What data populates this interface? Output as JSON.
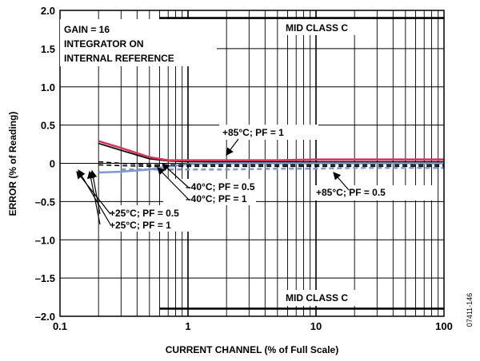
{
  "chart_data": {
    "type": "line",
    "xlabel": "CURRENT CHANNEL (% of Full Scale)",
    "ylabel": "ERROR (% of Reading)",
    "xscale": "log",
    "xlim": [
      0.1,
      100
    ],
    "ylim": [
      -2.0,
      2.0
    ],
    "grid": true,
    "x_ticks": [
      {
        "value": 0.1,
        "label": "0.1"
      },
      {
        "value": 1,
        "label": "1"
      },
      {
        "value": 10,
        "label": "10"
      },
      {
        "value": 100,
        "label": "100"
      }
    ],
    "y_ticks": [
      {
        "value": 2.0,
        "label": "2.0"
      },
      {
        "value": 1.5,
        "label": "1.5"
      },
      {
        "value": 1.0,
        "label": "1.0"
      },
      {
        "value": 0.5,
        "label": "0.5"
      },
      {
        "value": 0,
        "label": "0"
      },
      {
        "value": -0.5,
        "label": "–0.5"
      },
      {
        "value": -1.0,
        "label": "–1.0"
      },
      {
        "value": -1.5,
        "label": "–1.5"
      },
      {
        "value": -2.0,
        "label": "–2.0"
      }
    ],
    "conditions": [
      "GAIN = 16",
      "INTEGRATOR ON",
      "INTERNAL REFERENCE"
    ],
    "limits": [
      {
        "label": "MID CLASS C",
        "x": [
          0.6,
          100
        ],
        "y": 1.9
      },
      {
        "label": "MID CLASS C",
        "x": [
          0.6,
          100
        ],
        "y": -1.9
      }
    ],
    "series": [
      {
        "label": "+25°C; PF = 1",
        "color": "#000000",
        "dash": false,
        "x": [
          0.2,
          0.3,
          0.5,
          0.7,
          1,
          2,
          5,
          10,
          20,
          50,
          100
        ],
        "y": [
          0.26,
          0.17,
          0.06,
          0.03,
          0.02,
          0.02,
          0.02,
          0.02,
          0.02,
          0.02,
          0.02
        ]
      },
      {
        "label": "+25°C; PF = 0.5",
        "color": "#000000",
        "dash": true,
        "x": [
          0.2,
          0.3,
          0.5,
          0.7,
          1,
          2,
          5,
          10,
          20,
          50,
          100
        ],
        "y": [
          -0.02,
          -0.03,
          -0.04,
          -0.04,
          -0.04,
          -0.04,
          -0.04,
          -0.04,
          -0.04,
          -0.04,
          -0.04
        ]
      },
      {
        "label": "+85°C; PF = 1",
        "color": "#d6365c",
        "dash": false,
        "x": [
          0.2,
          0.3,
          0.5,
          0.7,
          1,
          2,
          5,
          10,
          20,
          50,
          100
        ],
        "y": [
          0.29,
          0.2,
          0.08,
          0.04,
          0.04,
          0.04,
          0.04,
          0.05,
          0.05,
          0.05,
          0.05
        ]
      },
      {
        "label": "+85°C; PF = 0.5",
        "color": "#7f99cc",
        "dash": true,
        "x": [
          0.3,
          0.5,
          0.7,
          1,
          2,
          5,
          10,
          20,
          50,
          100
        ],
        "y": [
          -0.08,
          -0.08,
          -0.08,
          -0.08,
          -0.08,
          -0.07,
          -0.07,
          -0.06,
          -0.06,
          -0.06
        ]
      },
      {
        "label": "–40°C; PF = 1",
        "color": "#7f99cc",
        "dash": false,
        "x": [
          0.2,
          0.3,
          0.5,
          0.7,
          1,
          2,
          5,
          10,
          20,
          50,
          100
        ],
        "y": [
          -0.12,
          -0.11,
          -0.08,
          -0.04,
          -0.01,
          0.0,
          0.0,
          0.0,
          0.0,
          0.0,
          0.0
        ]
      },
      {
        "label": "–40°C; PF = 0.5",
        "color": "#000000",
        "dash": true,
        "x": [
          0.2,
          0.3,
          0.5,
          0.7,
          1,
          2,
          5,
          10,
          20,
          50,
          100
        ],
        "y": [
          0.02,
          0.0,
          -0.02,
          -0.02,
          -0.02,
          -0.02,
          -0.02,
          -0.02,
          -0.02,
          -0.02,
          -0.02
        ]
      }
    ]
  },
  "figure_id": "07411-146"
}
